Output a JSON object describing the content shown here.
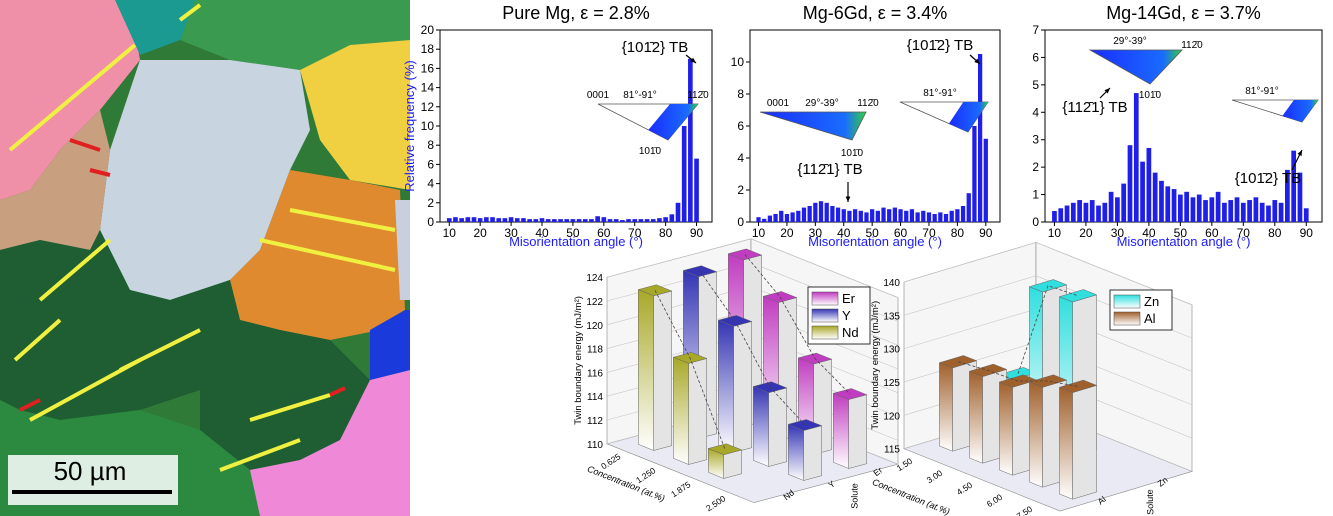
{
  "image": {
    "scale_bar": "50 µm"
  },
  "chart_data": [
    {
      "type": "bar",
      "title": "Pure Mg, ε = 2.8%",
      "xlabel": "Misorientation angle (°)",
      "ylabel": "Relative frequency (%)",
      "color": "#1f1fe8",
      "x": [
        10,
        12,
        14,
        16,
        18,
        20,
        22,
        24,
        26,
        28,
        30,
        32,
        34,
        36,
        38,
        40,
        42,
        44,
        46,
        48,
        50,
        52,
        54,
        56,
        58,
        60,
        62,
        64,
        66,
        68,
        70,
        72,
        74,
        76,
        78,
        80,
        82,
        84,
        86,
        88,
        90
      ],
      "values": [
        0.4,
        0.5,
        0.4,
        0.5,
        0.5,
        0.4,
        0.5,
        0.5,
        0.4,
        0.4,
        0.5,
        0.4,
        0.4,
        0.3,
        0.3,
        0.4,
        0.3,
        0.3,
        0.3,
        0.3,
        0.3,
        0.3,
        0.3,
        0.3,
        0.6,
        0.5,
        0.3,
        0.3,
        0.2,
        0.3,
        0.3,
        0.3,
        0.3,
        0.3,
        0.4,
        0.5,
        0.8,
        2,
        10,
        17,
        6.6
      ],
      "xlim": [
        7,
        95
      ],
      "xticks": [
        10,
        20,
        30,
        40,
        50,
        60,
        70,
        80,
        90
      ],
      "ylim": [
        0,
        20
      ],
      "yticks": [
        0,
        2,
        4,
        6,
        8,
        10,
        12,
        14,
        16,
        18,
        20
      ],
      "annotations": [
        "{101̄2} TB"
      ],
      "inset_labels": [
        "0001",
        "81°-91°",
        "112̄0",
        "101̄0"
      ]
    },
    {
      "type": "bar",
      "title": "Mg-6Gd, ε = 3.4%",
      "xlabel": "Misorientation angle (°)",
      "color": "#1f1fe8",
      "x": [
        10,
        12,
        14,
        16,
        18,
        20,
        22,
        24,
        26,
        28,
        30,
        32,
        34,
        36,
        38,
        40,
        42,
        44,
        46,
        48,
        50,
        52,
        54,
        56,
        58,
        60,
        62,
        64,
        66,
        68,
        70,
        72,
        74,
        76,
        78,
        80,
        82,
        84,
        86,
        88,
        90
      ],
      "values": [
        0.3,
        0.2,
        0.4,
        0.5,
        0.7,
        0.5,
        0.6,
        0.7,
        0.9,
        1.0,
        1.2,
        1.3,
        1.2,
        1.0,
        0.9,
        0.8,
        0.7,
        0.8,
        0.7,
        0.6,
        0.8,
        0.7,
        0.9,
        0.8,
        0.9,
        0.8,
        0.7,
        0.8,
        0.6,
        0.7,
        0.6,
        0.5,
        0.6,
        0.5,
        0.7,
        0.8,
        1.0,
        1.8,
        6,
        10.5,
        5.2
      ],
      "xlim": [
        7,
        95
      ],
      "xticks": [
        10,
        20,
        30,
        40,
        50,
        60,
        70,
        80,
        90
      ],
      "ylim": [
        0,
        12
      ],
      "yticks": [
        0,
        2,
        4,
        6,
        8,
        10
      ],
      "annotations": [
        "{101̄2} TB",
        "{112̄1} TB"
      ],
      "inset_labels": [
        "0001",
        "29°-39°",
        "112̄0",
        "101̄0",
        "81°-91°"
      ]
    },
    {
      "type": "bar",
      "title": "Mg-14Gd, ε = 3.7%",
      "xlabel": "Misorientation angle (°)",
      "color": "#1f1fe8",
      "x": [
        10,
        12,
        14,
        16,
        18,
        20,
        22,
        24,
        26,
        28,
        30,
        32,
        34,
        36,
        38,
        40,
        42,
        44,
        46,
        48,
        50,
        52,
        54,
        56,
        58,
        60,
        62,
        64,
        66,
        68,
        70,
        72,
        74,
        76,
        78,
        80,
        82,
        84,
        86,
        88,
        90
      ],
      "values": [
        0.4,
        0.5,
        0.6,
        0.7,
        0.8,
        0.7,
        0.8,
        0.6,
        0.7,
        1.1,
        0.9,
        1.4,
        2.8,
        4.7,
        2.2,
        2.7,
        1.8,
        1.5,
        1.3,
        1.2,
        1.0,
        1.1,
        0.9,
        1.0,
        0.8,
        0.9,
        1.1,
        0.7,
        0.8,
        0.9,
        0.7,
        0.8,
        0.9,
        0.7,
        0.6,
        0.8,
        0.7,
        1.9,
        2.6,
        1.8,
        0.5
      ],
      "xlim": [
        7,
        95
      ],
      "xticks": [
        10,
        20,
        30,
        40,
        50,
        60,
        70,
        80,
        90
      ],
      "ylim": [
        0,
        7
      ],
      "yticks": [
        0,
        1,
        2,
        3,
        4,
        5,
        6,
        7
      ],
      "annotations": [
        "{112̄1} TB",
        "{101̄2} TB"
      ],
      "inset_labels": [
        "29°-39°",
        "112̄0",
        "101̄0",
        "81°-91°"
      ]
    },
    {
      "type": "bar3d",
      "ylabel": "Twin boundary energy (mJ/m²)",
      "xlabel": "Concentration (at.%)",
      "zlabel": "Solute",
      "categories": [
        "0.625",
        "1.250",
        "1.875",
        "2.500"
      ],
      "series": [
        {
          "name": "Er",
          "color": "#c03cc0",
          "values": [
            124,
            121.6,
            117.6,
            115.8
          ]
        },
        {
          "name": "Y",
          "color": "#3434b4",
          "values": [
            123.6,
            120.6,
            116.2,
            114.2
          ]
        },
        {
          "name": "Nd",
          "color": "#a8a828",
          "values": [
            123,
            118.5,
            112,
            null
          ]
        }
      ],
      "ylim": [
        110,
        124
      ],
      "yticks": [
        110,
        112,
        114,
        116,
        118,
        120,
        122,
        124
      ]
    },
    {
      "type": "bar3d",
      "ylabel": "Twin boundary energy (mJ/m²)",
      "xlabel": "Concentration (at.%)",
      "zlabel": "Solute",
      "categories": [
        "1.50",
        "3.00",
        "4.50",
        "6.00",
        "7.50"
      ],
      "series": [
        {
          "name": "Zn",
          "color": "#30dede",
          "values": [
            123,
            138,
            138.3,
            null,
            null
          ]
        },
        {
          "name": "Al",
          "color": "#a0602c",
          "values": [
            127.5,
            128,
            128.2,
            130,
            131
          ]
        }
      ],
      "ylim": [
        115,
        140
      ],
      "yticks": [
        115,
        120,
        125,
        130,
        135,
        140
      ]
    }
  ]
}
